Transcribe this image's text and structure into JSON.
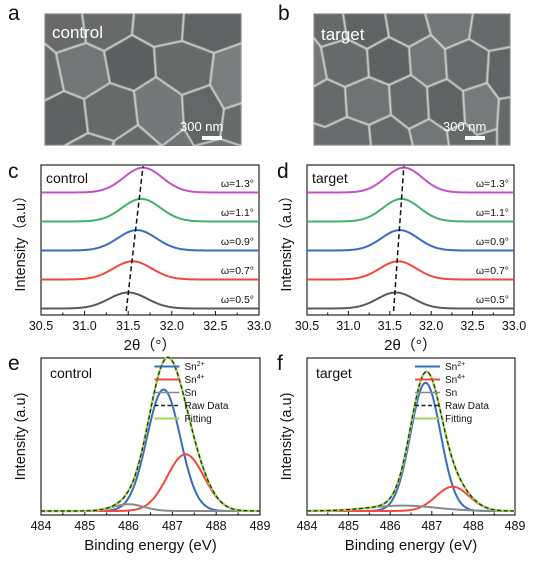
{
  "panels": {
    "a": {
      "letter": "a",
      "label": "control",
      "scale": "300 nm"
    },
    "b": {
      "letter": "b",
      "label": "target",
      "scale": "300 nm"
    }
  },
  "colors": {
    "magenta": "#c551c5",
    "green": "#3cb567",
    "blue": "#3a6cc2",
    "red": "#f24a3a",
    "gray": "#5a5a5a",
    "lightgreen": "#a6d65a"
  },
  "chart_data": [
    {
      "id": "c",
      "type": "line",
      "panel": "c",
      "label": "control",
      "xlabel": "2θ（°）",
      "ylabel": "Intensity（a.u）",
      "xlim": [
        30.5,
        33.0
      ],
      "xticks": [
        "30.5",
        "31.0",
        "31.5",
        "32.0",
        "32.5",
        "33.0"
      ],
      "series": [
        {
          "name": "ω=0.5°",
          "peak": 31.5,
          "color": "#5a5a5a"
        },
        {
          "name": "ω=0.7°",
          "peak": 31.55,
          "color": "#f24a3a"
        },
        {
          "name": "ω=0.9°",
          "peak": 31.6,
          "color": "#3a6cc2"
        },
        {
          "name": "ω=1.1°",
          "peak": 31.65,
          "color": "#3cb567"
        },
        {
          "name": "ω=1.3°",
          "peak": 31.67,
          "color": "#c551c5"
        }
      ]
    },
    {
      "id": "d",
      "type": "line",
      "panel": "d",
      "label": "target",
      "xlabel": "2θ（°）",
      "ylabel": "Intensity（a.u）",
      "xlim": [
        30.5,
        33.0
      ],
      "xticks": [
        "30.5",
        "31.0",
        "31.5",
        "32.0",
        "32.5",
        "33.0"
      ],
      "series": [
        {
          "name": "ω=0.5°",
          "peak": 31.57,
          "color": "#5a5a5a"
        },
        {
          "name": "ω=0.7°",
          "peak": 31.6,
          "color": "#f24a3a"
        },
        {
          "name": "ω=0.9°",
          "peak": 31.62,
          "color": "#3a6cc2"
        },
        {
          "name": "ω=1.1°",
          "peak": 31.64,
          "color": "#3cb567"
        },
        {
          "name": "ω=1.3°",
          "peak": 31.67,
          "color": "#c551c5"
        }
      ]
    },
    {
      "id": "e",
      "type": "line",
      "panel": "e",
      "label": "control",
      "xlabel": "Binding energy (eV)",
      "ylabel": "Intensity (a.u)",
      "xlim": [
        484,
        489
      ],
      "xticks": [
        "484",
        "485",
        "486",
        "487",
        "488",
        "489"
      ],
      "legend": [
        "Sn2+",
        "Sn4+",
        "Sn",
        "Raw Data",
        "Fitting"
      ],
      "series": [
        {
          "name": "Sn2+",
          "center": 486.8,
          "height": 0.9,
          "width": 0.38,
          "color": "#3a6cc2"
        },
        {
          "name": "Sn4+",
          "center": 487.3,
          "height": 0.42,
          "width": 0.42,
          "color": "#f24a3a"
        },
        {
          "name": "Sn",
          "center": 486.0,
          "height": 0.05,
          "width": 0.35,
          "color": "#8a8a8a"
        }
      ]
    },
    {
      "id": "f",
      "type": "line",
      "panel": "f",
      "label": "target",
      "xlabel": "Binding energy (eV)",
      "ylabel": "Intensity (a.u)",
      "xlim": [
        484,
        489
      ],
      "xticks": [
        "484",
        "485",
        "486",
        "487",
        "488",
        "489"
      ],
      "legend": [
        "Sn2+",
        "Sn4+",
        "Sn",
        "Raw Data",
        "Fitting"
      ],
      "series": [
        {
          "name": "Sn2+",
          "center": 486.85,
          "height": 0.95,
          "width": 0.36,
          "color": "#3a6cc2"
        },
        {
          "name": "Sn4+",
          "center": 487.5,
          "height": 0.18,
          "width": 0.4,
          "color": "#f24a3a"
        },
        {
          "name": "Sn",
          "center": 486.3,
          "height": 0.04,
          "width": 0.8,
          "color": "#8a8a8a"
        }
      ]
    }
  ]
}
